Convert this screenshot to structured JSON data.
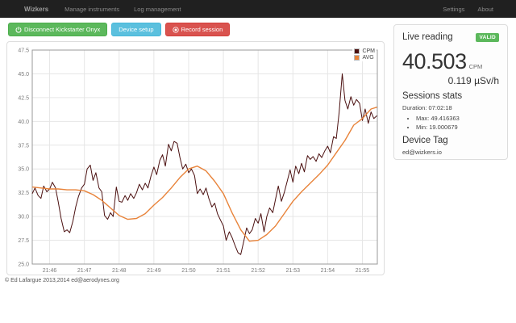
{
  "navbar": {
    "brand": "Wizkers",
    "items": [
      {
        "label": "Manage instruments"
      },
      {
        "label": "Log management"
      }
    ],
    "right_items": [
      {
        "label": "Settings"
      },
      {
        "label": "About"
      }
    ]
  },
  "toolbar": {
    "disconnect_label": "Disconnect Kickstarter Onyx",
    "device_setup_label": "Device setup",
    "record_label": "Record session"
  },
  "live_panel": {
    "title": "Live reading",
    "badge": "VALID",
    "reading_value": "40.503",
    "reading_unit": "CPM",
    "secondary_reading": "0.119 µSv/h",
    "stats_heading": "Sessions stats",
    "duration": "Duration: 07:02:18",
    "stats": [
      {
        "label": "Max: 49.416363"
      },
      {
        "label": "Min: 19.000679"
      }
    ],
    "device_tag_heading": "Device Tag",
    "device_tag": "ed@wizkers.io"
  },
  "footer": {
    "copyright": "© Ed Lafargue 2013,2014 ed@aerodynes.org"
  },
  "colors": {
    "navbar_bg": "#202020",
    "disconnect_button": "#5cb85c",
    "device_setup_button": "#5bc0de",
    "record_button": "#d9534f",
    "valid_badge": "#5cb85c",
    "cpm_line": "#4b1010",
    "avg_line": "#e8833a",
    "gridline": "#e6e6e6"
  },
  "chart_data": {
    "type": "line",
    "title": "",
    "x_unit": "minutes after 21:45:30",
    "x_range": [
      0,
      9.93
    ],
    "y_range": [
      25.0,
      47.5
    ],
    "y_tick_step": 2.5,
    "y_tick_labels": [
      "25.0",
      "27.5",
      "30.0",
      "32.5",
      "35.0",
      "37.5",
      "40.0",
      "42.5",
      "45.0",
      "47.5"
    ],
    "grid": true,
    "legend_position": "top-right",
    "x_ticks": [
      {
        "x": 0.5,
        "label": "21:46"
      },
      {
        "x": 1.5,
        "label": "21:47"
      },
      {
        "x": 2.5,
        "label": "21:48"
      },
      {
        "x": 3.5,
        "label": "21:49"
      },
      {
        "x": 4.5,
        "label": "21:50"
      },
      {
        "x": 5.5,
        "label": "21:51"
      },
      {
        "x": 6.5,
        "label": "21:52"
      },
      {
        "x": 7.5,
        "label": "21:53"
      },
      {
        "x": 8.5,
        "label": "21:54"
      },
      {
        "x": 9.5,
        "label": "21:55"
      }
    ],
    "series": [
      {
        "name": "CPM",
        "color": "#4b1010",
        "points": [
          [
            0,
            32.4
          ],
          [
            0.08,
            33
          ],
          [
            0.17,
            32.2
          ],
          [
            0.25,
            31.9
          ],
          [
            0.33,
            33.2
          ],
          [
            0.42,
            32.6
          ],
          [
            0.5,
            32.9
          ],
          [
            0.58,
            33.6
          ],
          [
            0.67,
            33
          ],
          [
            0.75,
            31.5
          ],
          [
            0.83,
            29.8
          ],
          [
            0.92,
            28.4
          ],
          [
            1,
            28.6
          ],
          [
            1.08,
            28.3
          ],
          [
            1.17,
            29.5
          ],
          [
            1.25,
            31
          ],
          [
            1.33,
            32.1
          ],
          [
            1.42,
            33
          ],
          [
            1.5,
            33.4
          ],
          [
            1.58,
            35
          ],
          [
            1.67,
            35.4
          ],
          [
            1.75,
            33.8
          ],
          [
            1.83,
            34.6
          ],
          [
            1.92,
            33
          ],
          [
            2,
            32.6
          ],
          [
            2.08,
            30.1
          ],
          [
            2.17,
            29.7
          ],
          [
            2.25,
            30.4
          ],
          [
            2.33,
            30
          ],
          [
            2.42,
            33.1
          ],
          [
            2.5,
            31.6
          ],
          [
            2.58,
            31.5
          ],
          [
            2.67,
            32.2
          ],
          [
            2.75,
            31.7
          ],
          [
            2.83,
            32.4
          ],
          [
            2.92,
            31.9
          ],
          [
            3,
            32.5
          ],
          [
            3.08,
            33.4
          ],
          [
            3.17,
            32.8
          ],
          [
            3.25,
            33.5
          ],
          [
            3.33,
            33
          ],
          [
            3.42,
            34.3
          ],
          [
            3.5,
            35.2
          ],
          [
            3.58,
            34.4
          ],
          [
            3.67,
            35.9
          ],
          [
            3.75,
            36.5
          ],
          [
            3.83,
            35.3
          ],
          [
            3.92,
            37.6
          ],
          [
            4,
            36.9
          ],
          [
            4.08,
            37.9
          ],
          [
            4.17,
            37.7
          ],
          [
            4.25,
            36.2
          ],
          [
            4.33,
            35
          ],
          [
            4.42,
            35.5
          ],
          [
            4.5,
            34.6
          ],
          [
            4.58,
            35
          ],
          [
            4.67,
            34.3
          ],
          [
            4.75,
            32.4
          ],
          [
            4.83,
            32.9
          ],
          [
            4.92,
            32.3
          ],
          [
            5,
            33
          ],
          [
            5.08,
            31.9
          ],
          [
            5.17,
            31
          ],
          [
            5.25,
            31.4
          ],
          [
            5.33,
            30.3
          ],
          [
            5.42,
            29.6
          ],
          [
            5.5,
            29
          ],
          [
            5.58,
            27.5
          ],
          [
            5.67,
            28.4
          ],
          [
            5.75,
            27.8
          ],
          [
            5.83,
            27
          ],
          [
            5.92,
            26.2
          ],
          [
            6,
            26
          ],
          [
            6.08,
            27.3
          ],
          [
            6.17,
            28.8
          ],
          [
            6.25,
            28.2
          ],
          [
            6.33,
            28.6
          ],
          [
            6.42,
            29.8
          ],
          [
            6.5,
            29.3
          ],
          [
            6.58,
            30.3
          ],
          [
            6.67,
            28.4
          ],
          [
            6.75,
            30
          ],
          [
            6.83,
            30.9
          ],
          [
            6.92,
            30.4
          ],
          [
            7,
            31.8
          ],
          [
            7.08,
            33.2
          ],
          [
            7.17,
            31.6
          ],
          [
            7.25,
            32.5
          ],
          [
            7.33,
            33.6
          ],
          [
            7.42,
            34.9
          ],
          [
            7.5,
            33.6
          ],
          [
            7.58,
            35.3
          ],
          [
            7.67,
            34.5
          ],
          [
            7.75,
            35.6
          ],
          [
            7.83,
            34.7
          ],
          [
            7.92,
            36.4
          ],
          [
            8,
            36
          ],
          [
            8.08,
            36.3
          ],
          [
            8.17,
            35.8
          ],
          [
            8.25,
            36.6
          ],
          [
            8.33,
            36.2
          ],
          [
            8.42,
            36.9
          ],
          [
            8.5,
            37.4
          ],
          [
            8.58,
            36.7
          ],
          [
            8.67,
            38.4
          ],
          [
            8.75,
            38.2
          ],
          [
            8.83,
            40.9
          ],
          [
            8.92,
            45
          ],
          [
            9,
            42.2
          ],
          [
            9.08,
            41.3
          ],
          [
            9.17,
            42.6
          ],
          [
            9.25,
            41.7
          ],
          [
            9.33,
            42.3
          ],
          [
            9.42,
            41.9
          ],
          [
            9.5,
            40.1
          ],
          [
            9.58,
            41.3
          ],
          [
            9.67,
            39.8
          ],
          [
            9.75,
            41
          ],
          [
            9.83,
            40.3
          ],
          [
            9.92,
            40.6
          ]
        ]
      },
      {
        "name": "AVG",
        "color": "#e8833a",
        "points": [
          [
            0,
            33.1
          ],
          [
            0.25,
            33
          ],
          [
            0.5,
            32.9
          ],
          [
            0.75,
            32.9
          ],
          [
            1,
            32.8
          ],
          [
            1.25,
            32.8
          ],
          [
            1.5,
            32.7
          ],
          [
            1.75,
            32.3
          ],
          [
            2,
            31.7
          ],
          [
            2.25,
            30.9
          ],
          [
            2.5,
            30.1
          ],
          [
            2.75,
            29.7
          ],
          [
            3,
            29.8
          ],
          [
            3.25,
            30.3
          ],
          [
            3.5,
            31.2
          ],
          [
            3.75,
            32
          ],
          [
            4,
            33
          ],
          [
            4.25,
            34.1
          ],
          [
            4.5,
            35
          ],
          [
            4.75,
            35.3
          ],
          [
            5,
            34.8
          ],
          [
            5.25,
            33.7
          ],
          [
            5.5,
            32.4
          ],
          [
            5.75,
            30.4
          ],
          [
            6,
            28.6
          ],
          [
            6.25,
            27.4
          ],
          [
            6.5,
            27.5
          ],
          [
            6.75,
            28.1
          ],
          [
            7,
            29
          ],
          [
            7.25,
            30.3
          ],
          [
            7.5,
            31.6
          ],
          [
            7.75,
            32.6
          ],
          [
            8,
            33.5
          ],
          [
            8.25,
            34.4
          ],
          [
            8.5,
            35.4
          ],
          [
            8.75,
            36.7
          ],
          [
            9,
            38
          ],
          [
            9.25,
            39.6
          ],
          [
            9.5,
            40.3
          ],
          [
            9.75,
            41.3
          ],
          [
            9.92,
            41.5
          ]
        ]
      }
    ]
  }
}
